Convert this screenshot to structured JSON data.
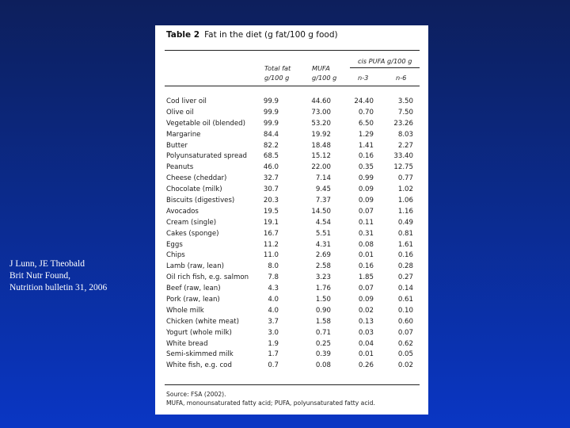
{
  "citation": {
    "line1": "J Lunn, JE Theobald",
    "line2": "Brit Nutr Found,",
    "line3": "Nutrition bulletin 31, 2006"
  },
  "table": {
    "label": "Table 2",
    "title": "Fat in the diet (g fat/100 g food)",
    "group_header": "cis PUFA g/100 g",
    "headers": {
      "total_fat_1": "Total fat",
      "total_fat_2": "g/100 g",
      "mufa_1": "MUFA",
      "mufa_2": "g/100 g",
      "n3": "n-3",
      "n6": "n-6"
    },
    "rows": [
      {
        "food": "Cod liver oil",
        "total": "99.9",
        "mufa": "44.60",
        "n3": "24.40",
        "n6": "3.50"
      },
      {
        "food": "Olive oil",
        "total": "99.9",
        "mufa": "73.00",
        "n3": "0.70",
        "n6": "7.50"
      },
      {
        "food": "Vegetable oil (blended)",
        "total": "99.9",
        "mufa": "53.20",
        "n3": "6.50",
        "n6": "23.26"
      },
      {
        "food": "Margarine",
        "total": "84.4",
        "mufa": "19.92",
        "n3": "1.29",
        "n6": "8.03"
      },
      {
        "food": "Butter",
        "total": "82.2",
        "mufa": "18.48",
        "n3": "1.41",
        "n6": "2.27"
      },
      {
        "food": "Polyunsaturated spread",
        "total": "68.5",
        "mufa": "15.12",
        "n3": "0.16",
        "n6": "33.40"
      },
      {
        "food": "Peanuts",
        "total": "46.0",
        "mufa": "22.00",
        "n3": "0.35",
        "n6": "12.75"
      },
      {
        "food": "Cheese (cheddar)",
        "total": "32.7",
        "mufa": "7.14",
        "n3": "0.99",
        "n6": "0.77"
      },
      {
        "food": "Chocolate (milk)",
        "total": "30.7",
        "mufa": "9.45",
        "n3": "0.09",
        "n6": "1.02"
      },
      {
        "food": "Biscuits (digestives)",
        "total": "20.3",
        "mufa": "7.37",
        "n3": "0.09",
        "n6": "1.06"
      },
      {
        "food": "Avocados",
        "total": "19.5",
        "mufa": "14.50",
        "n3": "0.07",
        "n6": "1.16"
      },
      {
        "food": "Cream (single)",
        "total": "19.1",
        "mufa": "4.54",
        "n3": "0.11",
        "n6": "0.49"
      },
      {
        "food": "Cakes (sponge)",
        "total": "16.7",
        "mufa": "5.51",
        "n3": "0.31",
        "n6": "0.81"
      },
      {
        "food": "Eggs",
        "total": "11.2",
        "mufa": "4.31",
        "n3": "0.08",
        "n6": "1.61"
      },
      {
        "food": "Chips",
        "total": "11.0",
        "mufa": "2.69",
        "n3": "0.01",
        "n6": "0.16"
      },
      {
        "food": "Lamb (raw, lean)",
        "total": "8.0",
        "mufa": "2.58",
        "n3": "0.16",
        "n6": "0.28"
      },
      {
        "food": "Oil rich fish, e.g. salmon",
        "total": "7.8",
        "mufa": "3.23",
        "n3": "1.85",
        "n6": "0.27"
      },
      {
        "food": "Beef (raw, lean)",
        "total": "4.3",
        "mufa": "1.76",
        "n3": "0.07",
        "n6": "0.14"
      },
      {
        "food": "Pork (raw, lean)",
        "total": "4.0",
        "mufa": "1.50",
        "n3": "0.09",
        "n6": "0.61"
      },
      {
        "food": "Whole milk",
        "total": "4.0",
        "mufa": "0.90",
        "n3": "0.02",
        "n6": "0.10"
      },
      {
        "food": "Chicken (white meat)",
        "total": "3.7",
        "mufa": "1.58",
        "n3": "0.13",
        "n6": "0.60"
      },
      {
        "food": "Yogurt (whole milk)",
        "total": "3.0",
        "mufa": "0.71",
        "n3": "0.03",
        "n6": "0.07"
      },
      {
        "food": "White bread",
        "total": "1.9",
        "mufa": "0.25",
        "n3": "0.04",
        "n6": "0.62"
      },
      {
        "food": "Semi-skimmed milk",
        "total": "1.7",
        "mufa": "0.39",
        "n3": "0.01",
        "n6": "0.05"
      },
      {
        "food": "White fish, e.g. cod",
        "total": "0.7",
        "mufa": "0.08",
        "n3": "0.26",
        "n6": "0.02"
      }
    ],
    "source": "Source: FSA (2002).",
    "footnote": "MUFA, monounsaturated fatty acid; PUFA, polyunsaturated fatty acid."
  }
}
